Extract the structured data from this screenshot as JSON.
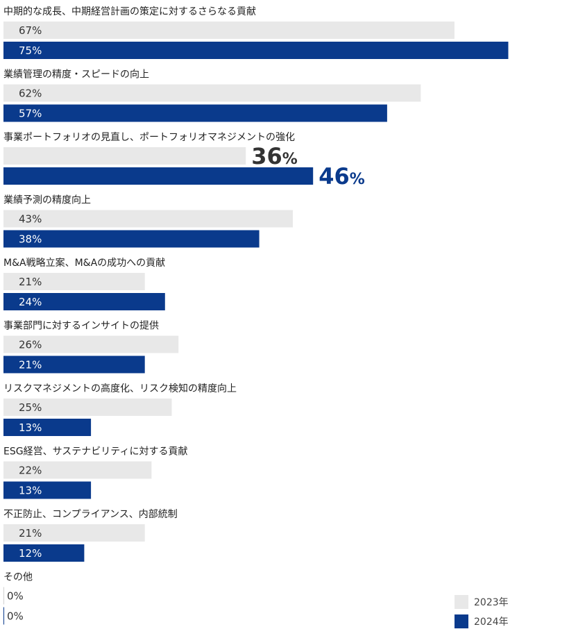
{
  "chart_data": {
    "type": "bar",
    "orientation": "horizontal",
    "categories": [
      "中期的な成長、中期経営計画の策定に対するさらなる貢献",
      "業績管理の精度・スピードの向上",
      "事業ポートフォリオの見直し、ポートフォリオマネジメントの強化",
      "業績予測の精度向上",
      "M&A戦略立案、M&Aの成功への貢献",
      "事業部門に対するインサイトの提供",
      "リスクマネジメントの高度化、リスク検知の精度向上",
      "ESG経営、サステナビリティに対する貢献",
      "不正防止、コンプライアンス、内部統制",
      "その他"
    ],
    "series": [
      {
        "name": "2023年",
        "color": "#e8e8e8",
        "values": [
          67,
          62,
          36,
          43,
          21,
          26,
          25,
          22,
          21,
          0
        ]
      },
      {
        "name": "2024年",
        "color": "#0a3a8c",
        "values": [
          75,
          57,
          46,
          38,
          24,
          21,
          13,
          13,
          12,
          0
        ]
      }
    ],
    "highlight_index": 2,
    "value_suffix": "%",
    "xlim": [
      0,
      100
    ],
    "legend_position": "bottom-right",
    "grid": false
  }
}
